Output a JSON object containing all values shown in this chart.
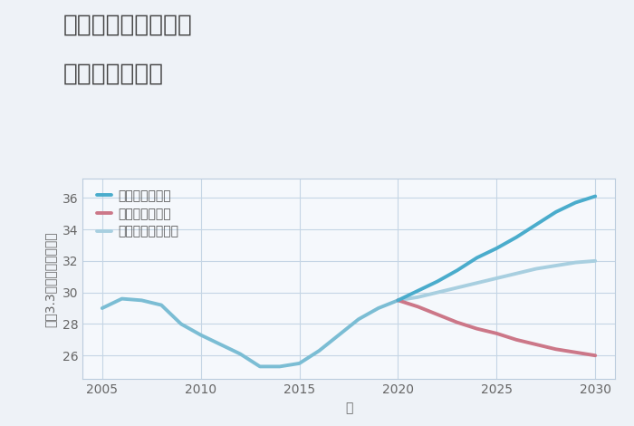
{
  "title_line1": "兵庫県宝塚市切畑の",
  "title_line2": "土地の価格推移",
  "xlabel": "年",
  "ylabel": "坪（3.3㎡）単価（万円）",
  "background_color": "#eef2f7",
  "plot_bg_color": "#f5f8fc",
  "grid_color": "#c5d5e5",
  "historical_x": [
    2005,
    2006,
    2007,
    2008,
    2009,
    2010,
    2011,
    2012,
    2013,
    2014,
    2015,
    2016,
    2017,
    2018,
    2019,
    2020
  ],
  "historical_y": [
    29.0,
    29.6,
    29.5,
    29.2,
    28.0,
    27.3,
    26.7,
    26.1,
    25.3,
    25.3,
    25.5,
    26.3,
    27.3,
    28.3,
    29.0,
    29.5
  ],
  "good_x": [
    2020,
    2021,
    2022,
    2023,
    2024,
    2025,
    2026,
    2027,
    2028,
    2029,
    2030
  ],
  "good_y": [
    29.5,
    30.1,
    30.7,
    31.4,
    32.2,
    32.8,
    33.5,
    34.3,
    35.1,
    35.7,
    36.1
  ],
  "bad_x": [
    2020,
    2021,
    2022,
    2023,
    2024,
    2025,
    2026,
    2027,
    2028,
    2029,
    2030
  ],
  "bad_y": [
    29.5,
    29.1,
    28.6,
    28.1,
    27.7,
    27.4,
    27.0,
    26.7,
    26.4,
    26.2,
    26.0
  ],
  "normal_x": [
    2020,
    2021,
    2022,
    2023,
    2024,
    2025,
    2026,
    2027,
    2028,
    2029,
    2030
  ],
  "normal_y": [
    29.5,
    29.7,
    30.0,
    30.3,
    30.6,
    30.9,
    31.2,
    31.5,
    31.7,
    31.9,
    32.0
  ],
  "historical_color": "#7bbdd4",
  "good_color": "#4aaccc",
  "bad_color": "#cc7788",
  "normal_color": "#a8cfe0",
  "legend_labels": [
    "グッドシナリオ",
    "バッドシナリオ",
    "ノーマルシナリオ"
  ],
  "ylim": [
    24.5,
    37.2
  ],
  "xlim": [
    2004,
    2031
  ],
  "yticks": [
    26,
    28,
    30,
    32,
    34,
    36
  ],
  "xticks": [
    2005,
    2010,
    2015,
    2020,
    2025,
    2030
  ],
  "title_fontsize": 19,
  "axis_label_fontsize": 10,
  "tick_fontsize": 10,
  "legend_fontsize": 10,
  "linewidth_hist": 2.8,
  "linewidth_scenario": 2.8
}
